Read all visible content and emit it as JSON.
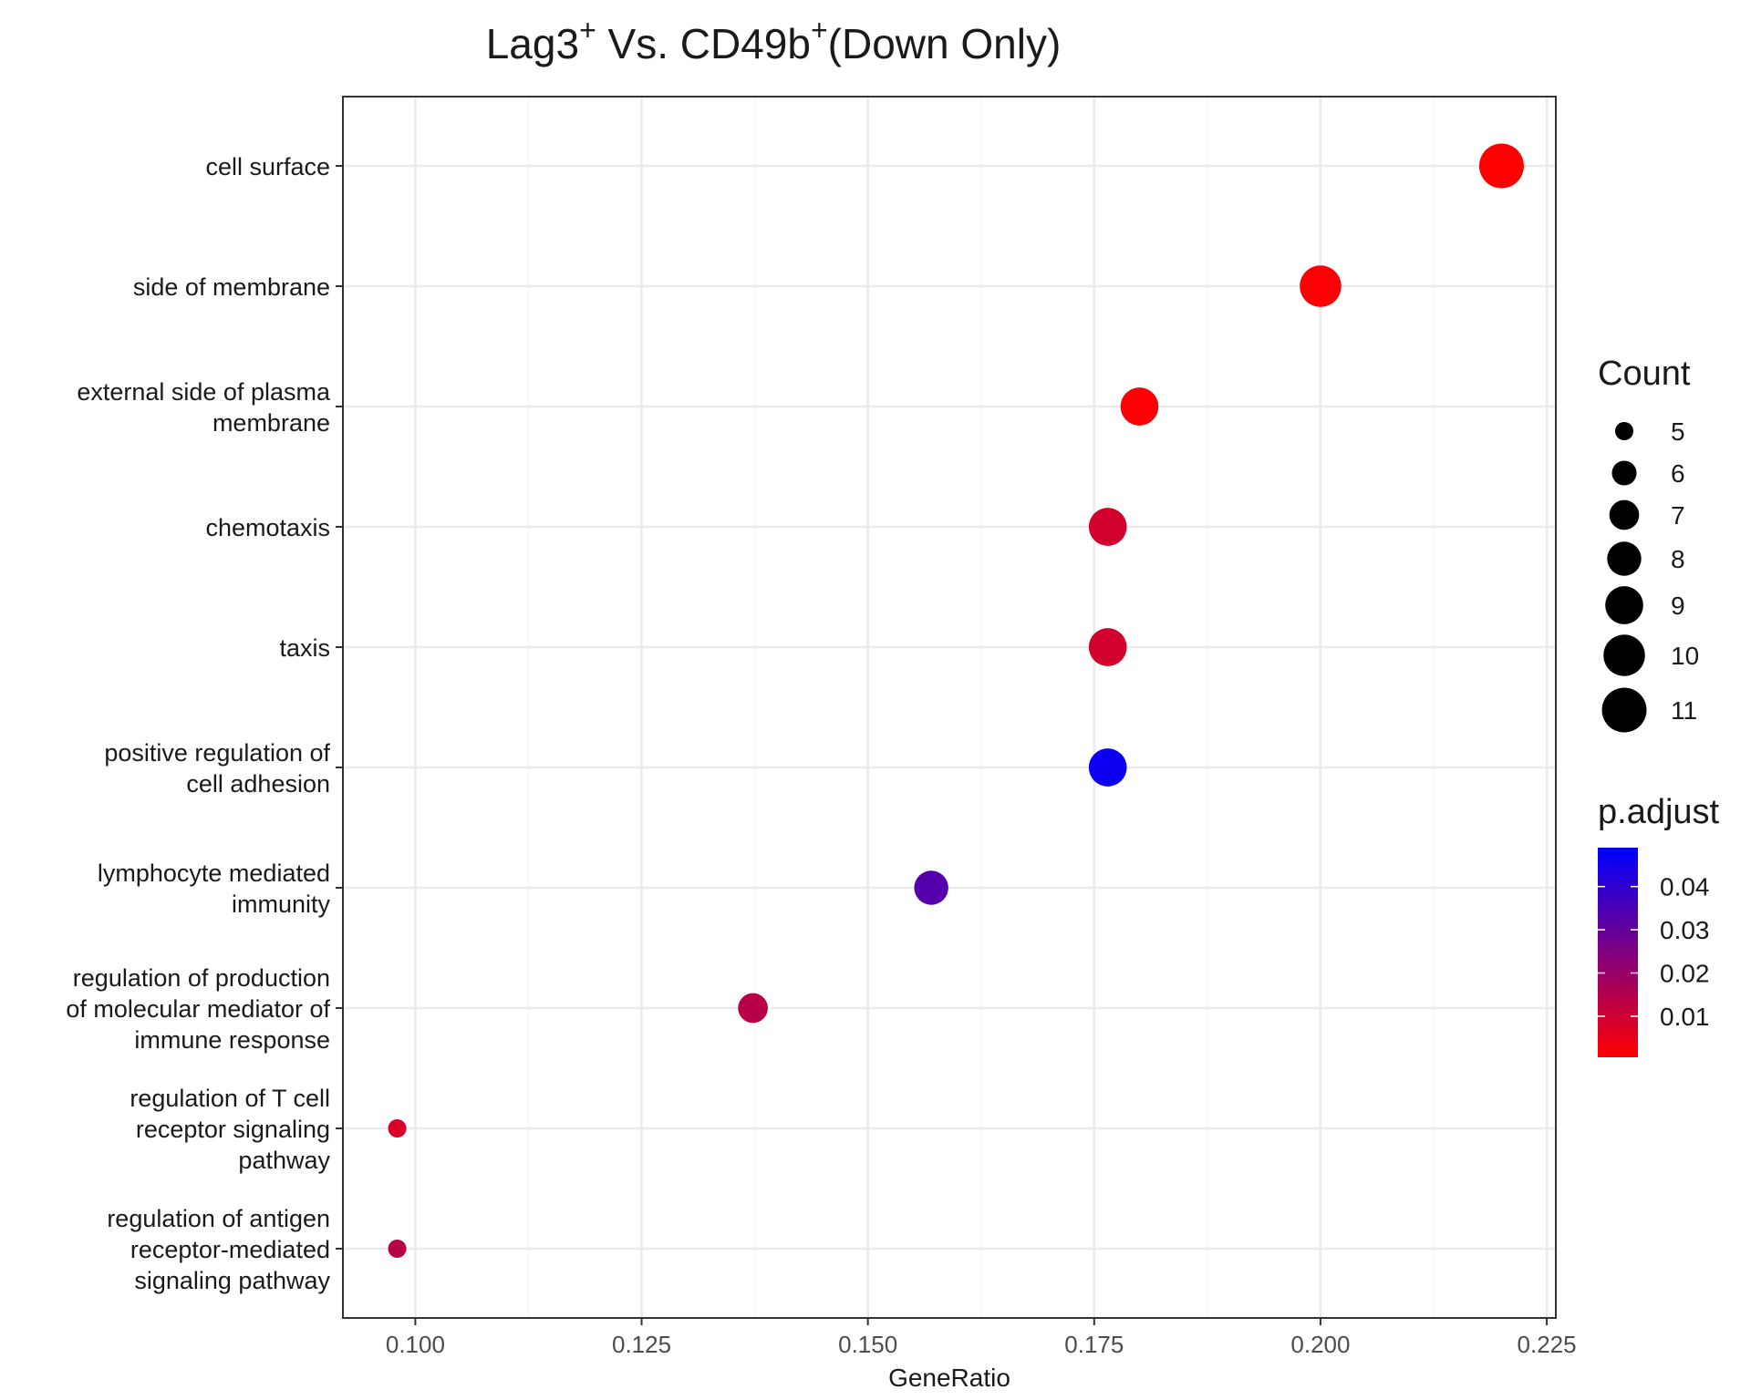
{
  "chart_data": {
    "type": "scatter",
    "title": {
      "base": "Lag3",
      "sup1": "+",
      "mid": " Vs. CD49b",
      "sup2": "+",
      "tail": "(Down Only)"
    },
    "xlabel": "GeneRatio",
    "ylabel": "",
    "xlim": [
      0.092,
      0.226
    ],
    "x_ticks": [
      0.1,
      0.125,
      0.15,
      0.175,
      0.2,
      0.225
    ],
    "x_tick_labels": [
      "0.100",
      "0.125",
      "0.150",
      "0.175",
      "0.200",
      "0.225"
    ],
    "grid": true,
    "categories": [
      [
        "cell surface"
      ],
      [
        "side of membrane"
      ],
      [
        "external side of plasma",
        "membrane"
      ],
      [
        "chemotaxis"
      ],
      [
        "taxis"
      ],
      [
        "positive regulation of",
        "cell adhesion"
      ],
      [
        "lymphocyte mediated",
        "immunity"
      ],
      [
        "regulation of production",
        "of molecular mediator of",
        "immune response"
      ],
      [
        "regulation of T cell",
        "receptor signaling",
        "pathway"
      ],
      [
        "regulation of antigen",
        "receptor-mediated",
        "signaling pathway"
      ]
    ],
    "points": [
      {
        "gene_ratio": 0.22,
        "count": 11,
        "p_adjust": 0.0005
      },
      {
        "gene_ratio": 0.2,
        "count": 10,
        "p_adjust": 0.001
      },
      {
        "gene_ratio": 0.18,
        "count": 9,
        "p_adjust": 0.001
      },
      {
        "gene_ratio": 0.1765,
        "count": 9,
        "p_adjust": 0.009
      },
      {
        "gene_ratio": 0.1765,
        "count": 9,
        "p_adjust": 0.009
      },
      {
        "gene_ratio": 0.1765,
        "count": 9,
        "p_adjust": 0.047
      },
      {
        "gene_ratio": 0.157,
        "count": 8,
        "p_adjust": 0.033
      },
      {
        "gene_ratio": 0.1373,
        "count": 7,
        "p_adjust": 0.014
      },
      {
        "gene_ratio": 0.098,
        "count": 5,
        "p_adjust": 0.008
      },
      {
        "gene_ratio": 0.098,
        "count": 5,
        "p_adjust": 0.014
      }
    ],
    "legend_size": {
      "title": "Count",
      "values": [
        5,
        6,
        7,
        8,
        9,
        10,
        11
      ],
      "labels": [
        "5",
        "6",
        "7",
        "8",
        "9",
        "10",
        "11"
      ],
      "placement": "right"
    },
    "legend_color": {
      "title": "p.adjust",
      "range": [
        0.0005,
        0.049
      ],
      "ticks": [
        0.01,
        0.02,
        0.03,
        0.04
      ],
      "tick_labels": [
        "0.01",
        "0.02",
        "0.03",
        "0.04"
      ],
      "low_color": "#ff0000",
      "high_color": "#0000ff",
      "placement": "right"
    },
    "colors": {
      "panel_border": "#333333",
      "grid_major": "#ebebeb",
      "grid_minor": "#f5f5f5",
      "point_size_legend": "#000000"
    }
  }
}
